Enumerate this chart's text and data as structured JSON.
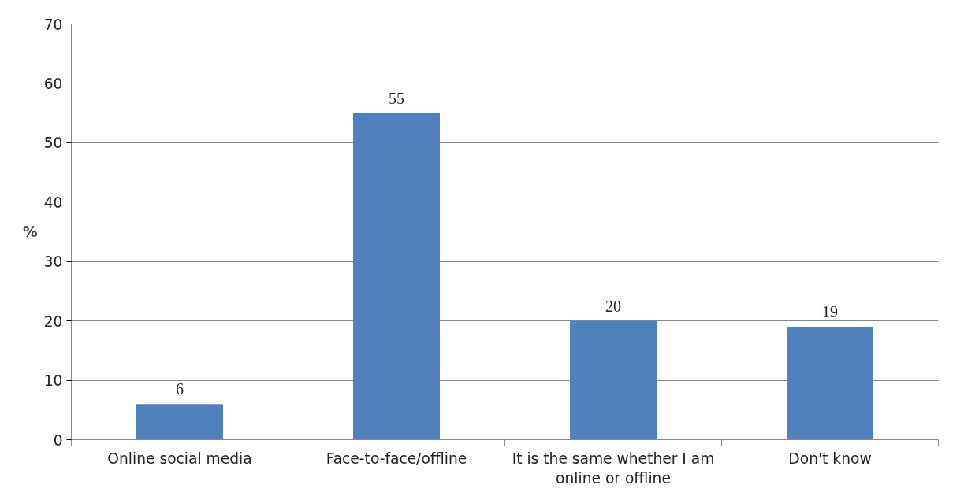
{
  "chart_data": {
    "type": "bar",
    "ylabel": "%",
    "categories": [
      "Online social media",
      "Face-to-face/offline",
      "It is the same whether I am online or offline",
      "Don't know"
    ],
    "values": [
      6,
      55,
      20,
      19
    ],
    "color": "#4f81bd",
    "ylim": [
      0,
      70
    ],
    "yticks": [
      0,
      10,
      20,
      30,
      40,
      50,
      60,
      70
    ],
    "grid": "y",
    "data_labels": true
  }
}
